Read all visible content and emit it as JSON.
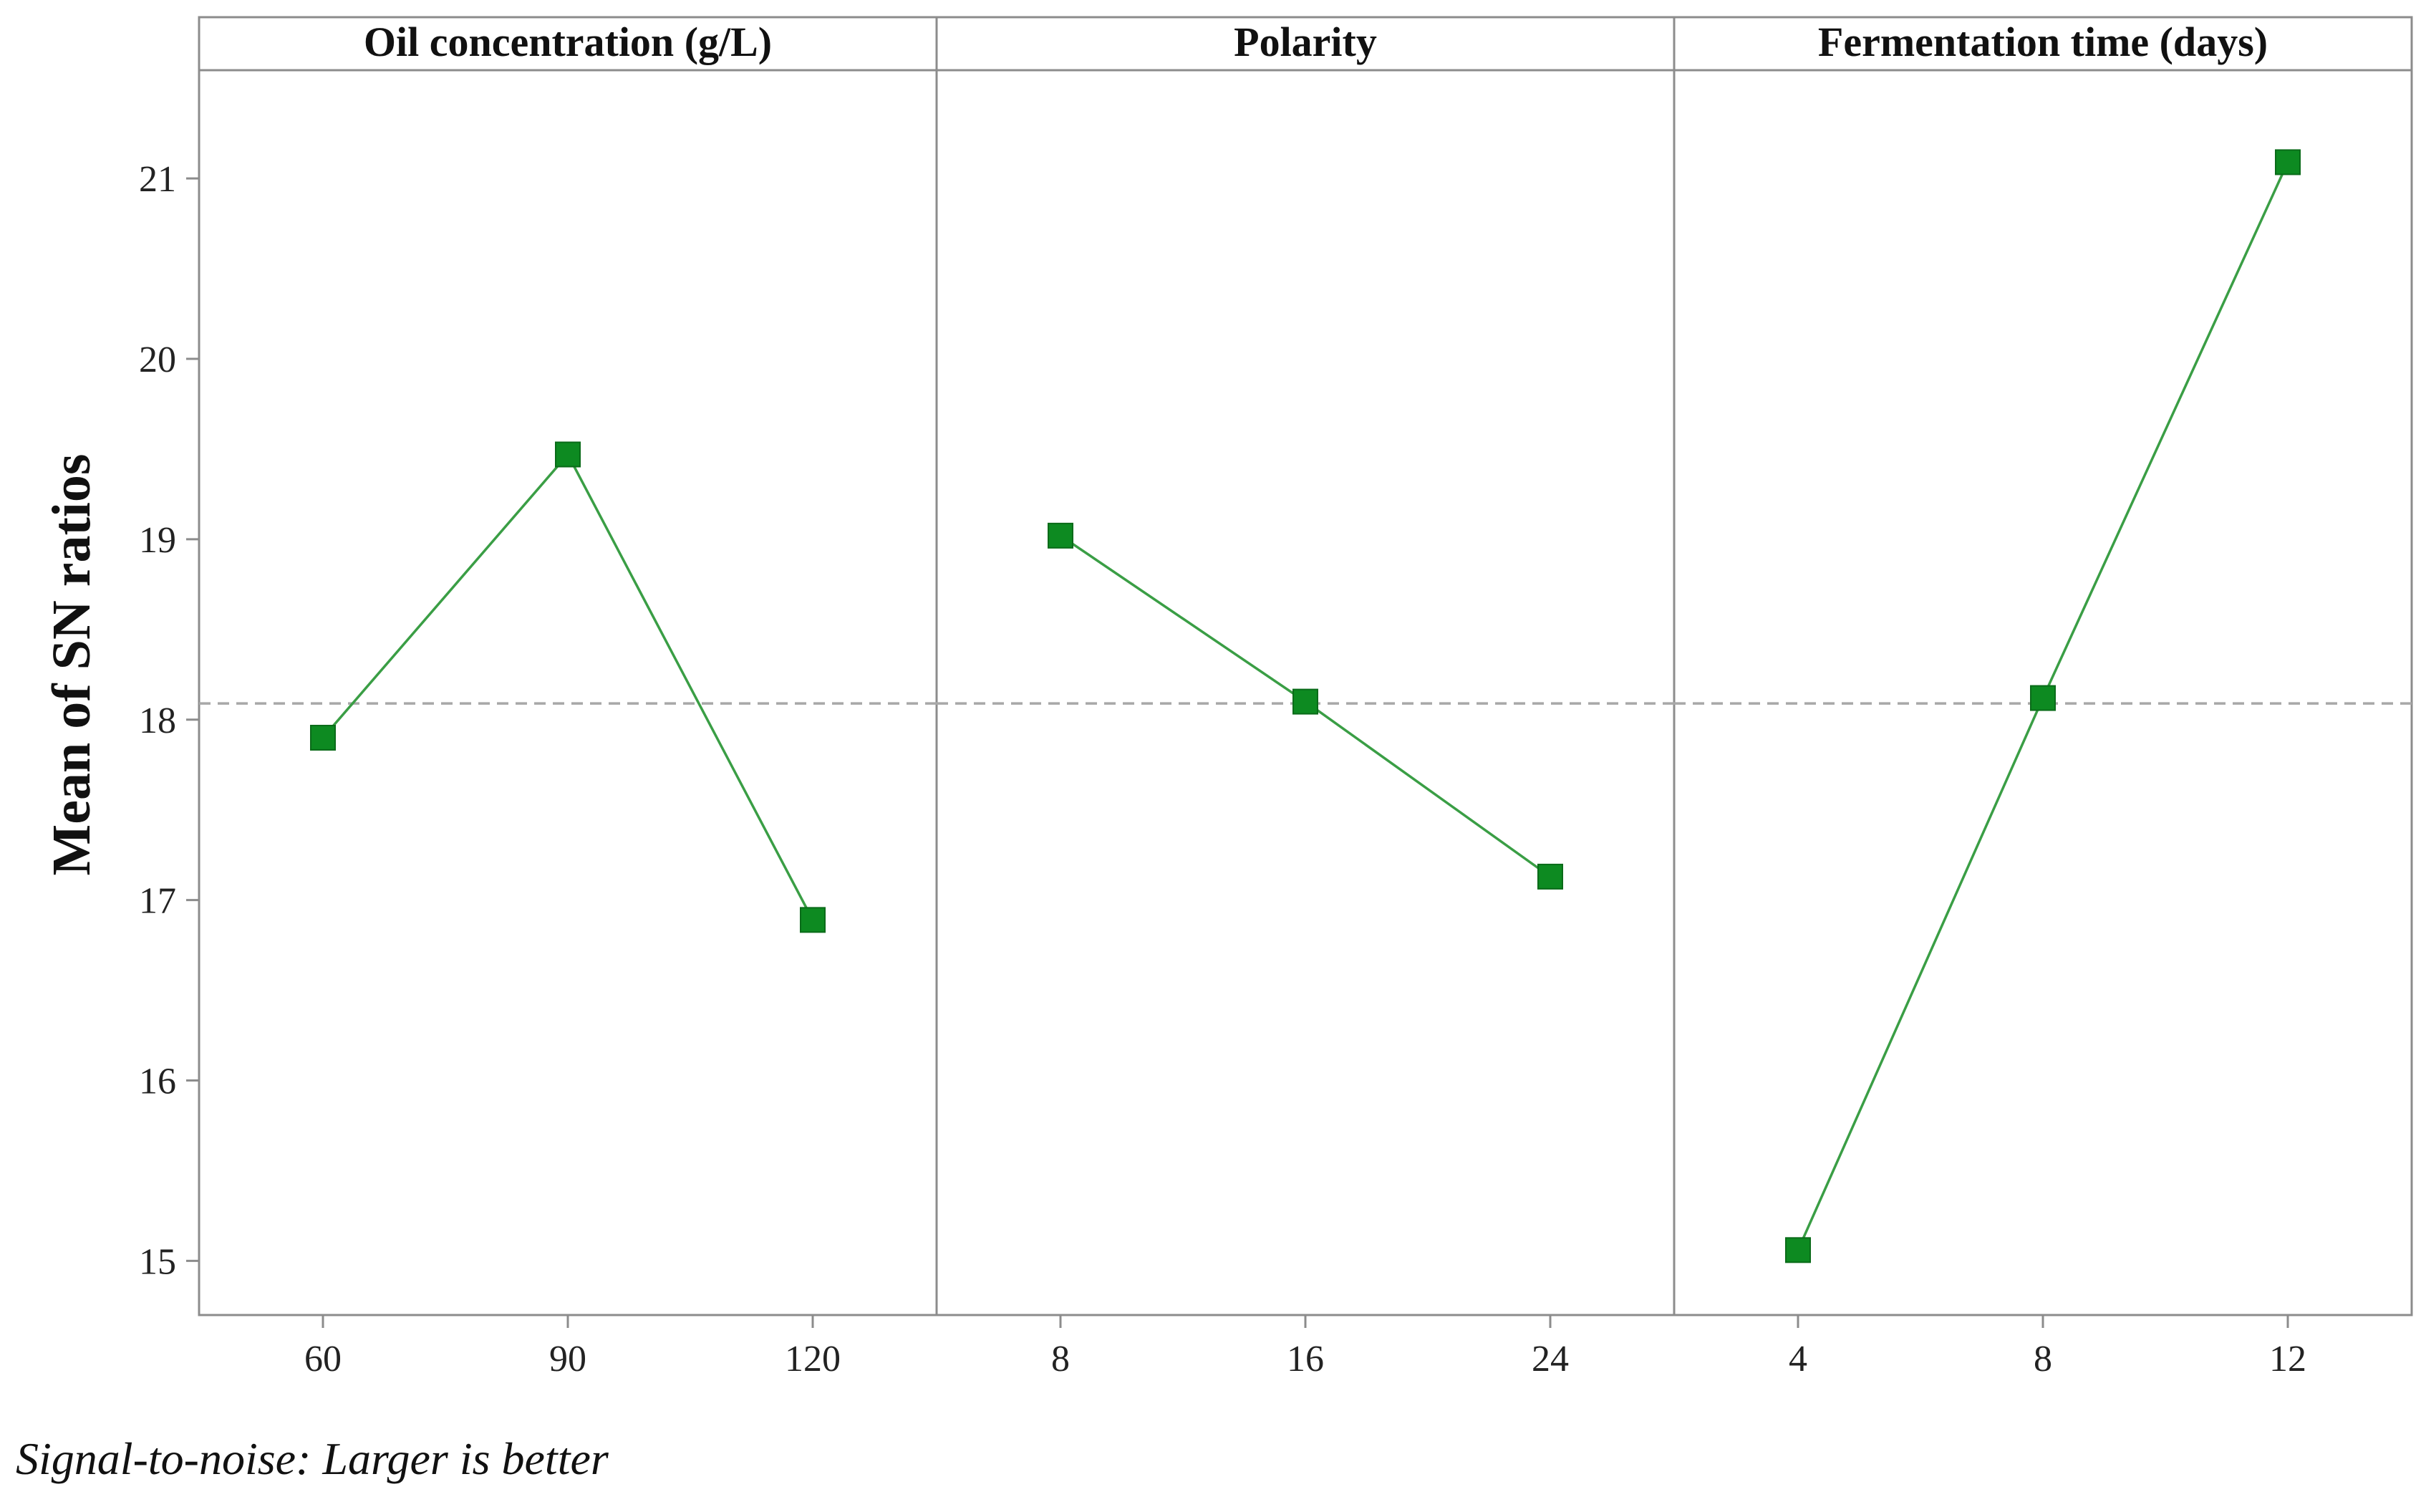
{
  "chart_data": {
    "type": "line",
    "title": "",
    "ylabel": "Mean of SN ratios",
    "ylim": [
      14.7,
      21.6
    ],
    "yticks": [
      15,
      16,
      17,
      18,
      19,
      20,
      21
    ],
    "mean_reference_line": 18.09,
    "footnote": "Signal-to-noise: Larger is better",
    "panels": [
      {
        "title": "Oil concentration (g/L)",
        "categories": [
          "60",
          "90",
          "120"
        ],
        "values": [
          17.9,
          19.47,
          16.89
        ]
      },
      {
        "title": "Polarity",
        "categories": [
          "8",
          "16",
          "24"
        ],
        "values": [
          19.02,
          18.1,
          17.13
        ]
      },
      {
        "title": "Fermentation time (days)",
        "categories": [
          "4",
          "8",
          "12"
        ],
        "values": [
          15.06,
          18.12,
          21.09
        ]
      }
    ],
    "colors": {
      "series_line": "#3a9e45",
      "series_marker": "#0d8a21",
      "mean_line": "#a8a8a8",
      "frame": "#8c8c8c"
    },
    "grid": false,
    "marker": "square"
  }
}
